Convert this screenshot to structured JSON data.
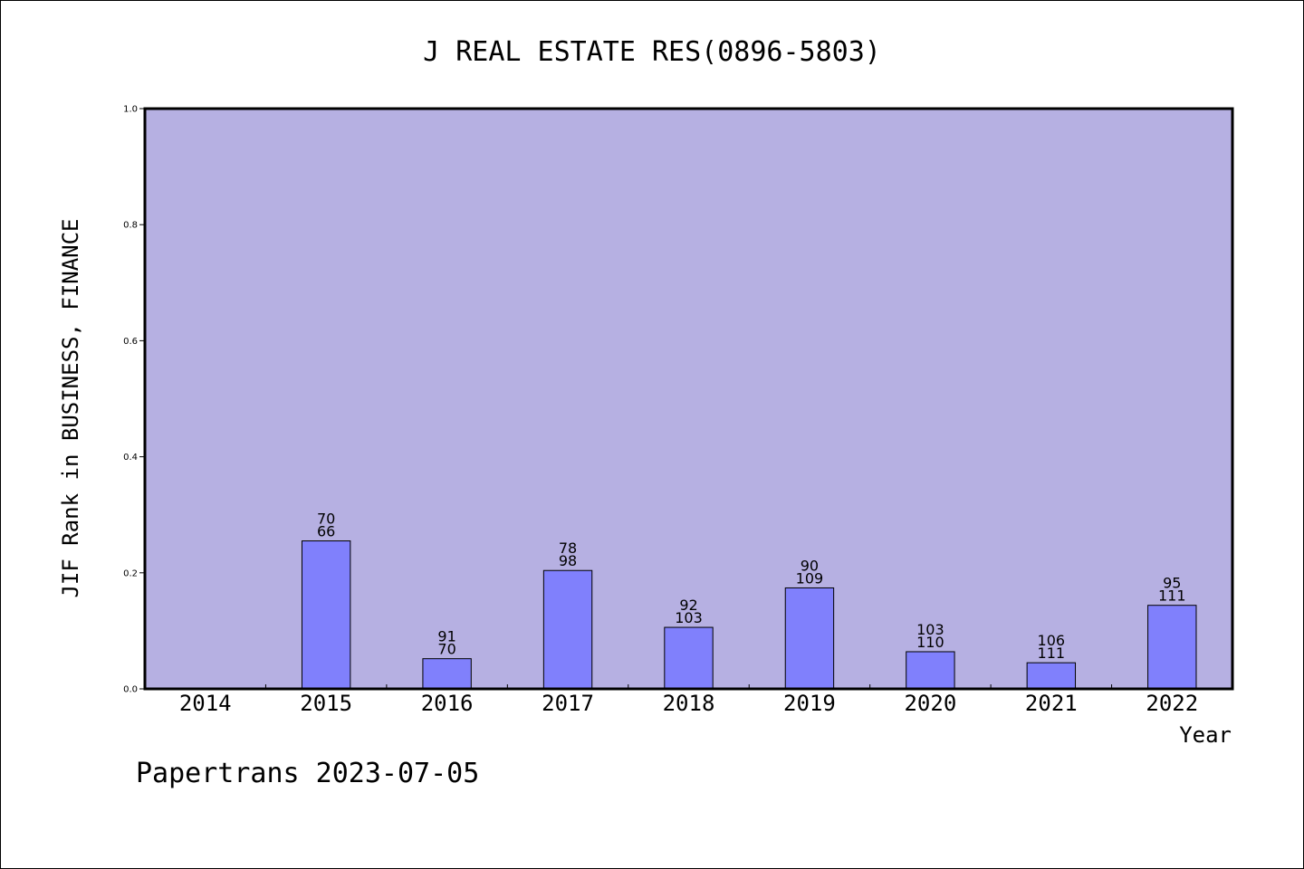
{
  "colors": {
    "plot_background": "#b6b0e2",
    "bar_fill": "#8080fc",
    "bar_stroke": "#000000",
    "axis": "#000000",
    "page_background": "#ffffff"
  },
  "footer": {
    "text": "Papertrans 2023-07-05"
  },
  "chart_data": {
    "type": "bar",
    "title": "J REAL ESTATE RES(0896-5803)",
    "xlabel": "Year",
    "ylabel": "JIF Rank in BUSINESS, FINANCE",
    "ylim": [
      0,
      1.0
    ],
    "yticks": [
      "0.0",
      "0.2",
      "0.4",
      "0.6",
      "0.8",
      "1.0"
    ],
    "categories": [
      "2014",
      "2015",
      "2016",
      "2017",
      "2018",
      "2019",
      "2020",
      "2021",
      "2022"
    ],
    "values": [
      null,
      0.255,
      0.052,
      0.204,
      0.106,
      0.174,
      0.064,
      0.045,
      0.144
    ],
    "labels_top": [
      "",
      "70",
      "91",
      "78",
      "92",
      "90",
      "103",
      "106",
      "95"
    ],
    "labels_bottom": [
      "",
      "66",
      "70",
      "98",
      "103",
      "109",
      "110",
      "111",
      "111"
    ],
    "grid": false,
    "legend": "none"
  }
}
